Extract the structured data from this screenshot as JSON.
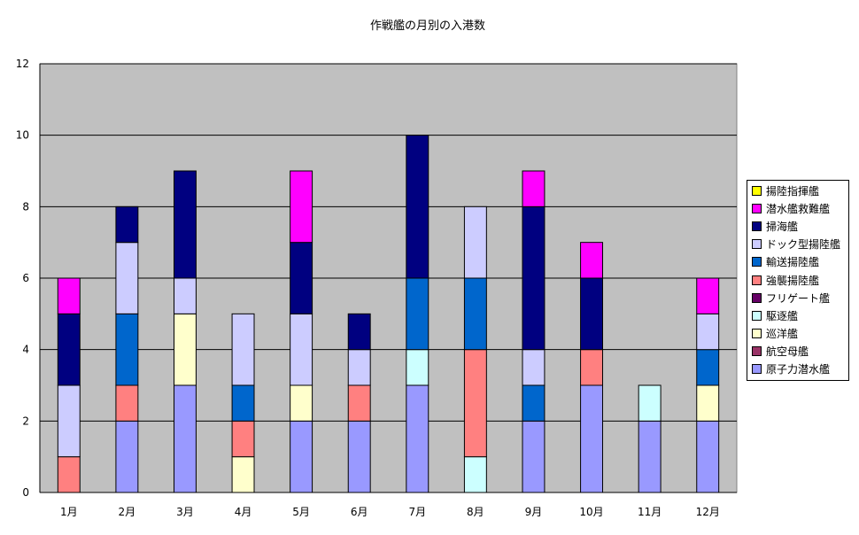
{
  "chart_data": {
    "type": "bar",
    "stacked": true,
    "title": "作戦艦の月別の入港数",
    "xlabel": "",
    "ylabel": "",
    "ylim": [
      0,
      12
    ],
    "yticks": [
      "0",
      "2",
      "4",
      "6",
      "8",
      "10",
      "12"
    ],
    "grid": true,
    "legend_position": "right",
    "plot_background": "#c0c0c0",
    "categories": [
      "1月",
      "2月",
      "3月",
      "4月",
      "5月",
      "6月",
      "7月",
      "8月",
      "9月",
      "10月",
      "11月",
      "12月"
    ],
    "series": [
      {
        "name": "原子力潜水艦",
        "color": "#9999ff",
        "values": [
          0,
          2,
          3,
          0,
          2,
          2,
          3,
          0,
          2,
          3,
          2,
          2
        ]
      },
      {
        "name": "航空母艦",
        "color": "#993366",
        "values": [
          0,
          0,
          0,
          0,
          0,
          0,
          0,
          0,
          0,
          0,
          0,
          0
        ]
      },
      {
        "name": "巡洋艦",
        "color": "#ffffcc",
        "values": [
          0,
          0,
          2,
          1,
          1,
          0,
          0,
          0,
          0,
          0,
          0,
          1
        ]
      },
      {
        "name": "駆逐艦",
        "color": "#ccffff",
        "values": [
          0,
          0,
          0,
          0,
          0,
          0,
          1,
          1,
          0,
          0,
          1,
          0
        ]
      },
      {
        "name": "フリゲート艦",
        "color": "#660066",
        "values": [
          0,
          0,
          0,
          0,
          0,
          0,
          0,
          0,
          0,
          0,
          0,
          0
        ]
      },
      {
        "name": "強襲揚陸艦",
        "color": "#ff8080",
        "values": [
          1,
          1,
          0,
          1,
          0,
          1,
          0,
          3,
          0,
          1,
          0,
          0
        ]
      },
      {
        "name": "輸送揚陸艦",
        "color": "#0066cc",
        "values": [
          0,
          2,
          0,
          1,
          0,
          0,
          2,
          2,
          1,
          0,
          0,
          1
        ]
      },
      {
        "name": "ドック型揚陸艦",
        "color": "#ccccff",
        "values": [
          2,
          2,
          1,
          2,
          2,
          1,
          0,
          2,
          1,
          0,
          0,
          1
        ]
      },
      {
        "name": "掃海艦",
        "color": "#000080",
        "values": [
          2,
          1,
          3,
          0,
          2,
          1,
          4,
          0,
          4,
          2,
          0,
          0
        ]
      },
      {
        "name": "潜水艦救難艦",
        "color": "#ff00ff",
        "values": [
          1,
          0,
          0,
          0,
          2,
          0,
          0,
          0,
          1,
          1,
          0,
          1
        ]
      },
      {
        "name": "揚陸指揮艦",
        "color": "#ffff00",
        "values": [
          0,
          0,
          0,
          0,
          0,
          0,
          0,
          0,
          0,
          0,
          0,
          0
        ]
      }
    ]
  }
}
